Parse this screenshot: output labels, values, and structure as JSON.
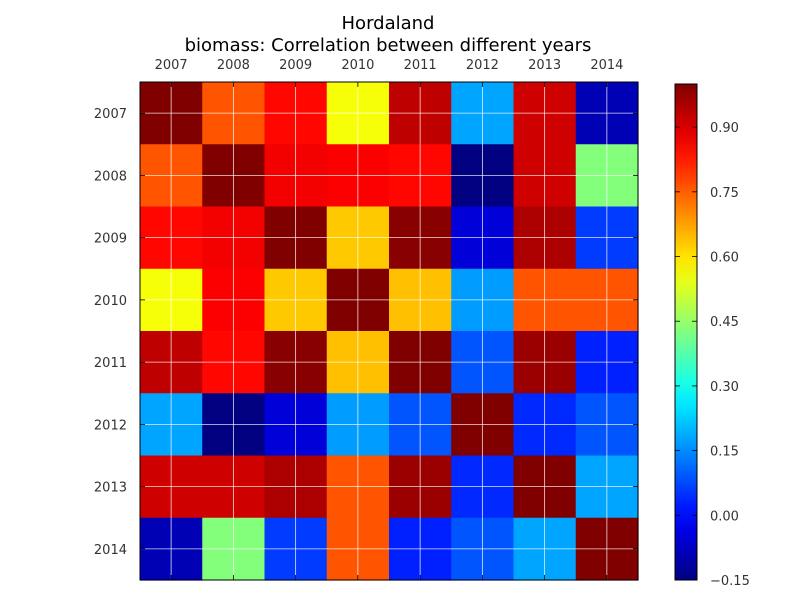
{
  "chart_data": {
    "type": "heatmap",
    "title": "Hordaland",
    "subtitle": "biomass: Correlation between different years",
    "xlabels": [
      "2007",
      "2008",
      "2009",
      "2010",
      "2011",
      "2012",
      "2013",
      "2014"
    ],
    "ylabels": [
      "2007",
      "2008",
      "2009",
      "2010",
      "2011",
      "2012",
      "2013",
      "2014"
    ],
    "matrix": [
      [
        1.0,
        0.76,
        0.85,
        0.56,
        0.93,
        0.18,
        0.91,
        -0.09
      ],
      [
        0.76,
        1.0,
        0.87,
        0.86,
        0.85,
        -0.15,
        0.91,
        0.43
      ],
      [
        0.85,
        0.87,
        1.0,
        0.63,
        0.99,
        -0.05,
        0.95,
        0.06
      ],
      [
        0.56,
        0.86,
        0.63,
        1.0,
        0.64,
        0.17,
        0.76,
        0.76
      ],
      [
        0.93,
        0.85,
        0.99,
        0.64,
        1.0,
        0.09,
        0.97,
        0.03
      ],
      [
        0.18,
        -0.15,
        -0.05,
        0.17,
        0.09,
        1.0,
        0.04,
        0.09
      ],
      [
        0.91,
        0.91,
        0.95,
        0.76,
        0.97,
        0.04,
        1.0,
        0.18
      ],
      [
        -0.09,
        0.43,
        0.06,
        0.76,
        0.03,
        0.09,
        0.18,
        1.0
      ]
    ],
    "colorbar": {
      "colormap": "jet",
      "min": -0.15,
      "max": 1.0,
      "ticks": [
        "0.90",
        "0.75",
        "0.60",
        "0.45",
        "0.30",
        "0.15",
        "0.00",
        "−0.15"
      ],
      "tick_values": [
        0.9,
        0.75,
        0.6,
        0.45,
        0.3,
        0.15,
        0.0,
        -0.15
      ]
    },
    "grid": true,
    "xaxis_position": "top",
    "legend": "colorbar-right"
  }
}
